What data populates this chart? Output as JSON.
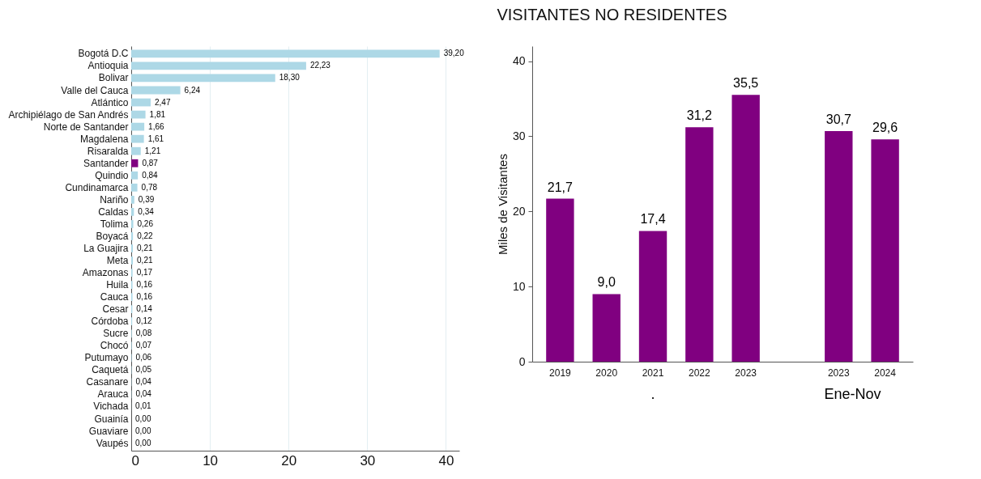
{
  "chart_data": [
    {
      "type": "bar",
      "orientation": "horizontal",
      "categories": [
        "Bogotá D.C",
        "Antioquia",
        "Bolivar",
        "Valle del Cauca",
        "Atlántico",
        "Archipiélago de San Andrés",
        "Norte de Santander",
        "Magdalena",
        "Risaralda",
        "Santander",
        "Quindio",
        "Cundinamarca",
        "Nariño",
        "Caldas",
        "Tolima",
        "Boyacá",
        "La Guajira",
        "Meta",
        "Amazonas",
        "Huila",
        "Cauca",
        "Cesar",
        "Córdoba",
        "Sucre",
        "Chocó",
        "Putumayo",
        "Caquetá",
        "Casanare",
        "Arauca",
        "Vichada",
        "Guainía",
        "Guaviare",
        "Vaupés"
      ],
      "values": [
        39.2,
        22.23,
        18.3,
        6.24,
        2.47,
        1.81,
        1.66,
        1.61,
        1.21,
        0.87,
        0.84,
        0.78,
        0.39,
        0.34,
        0.26,
        0.22,
        0.21,
        0.21,
        0.17,
        0.16,
        0.16,
        0.14,
        0.12,
        0.08,
        0.07,
        0.06,
        0.05,
        0.04,
        0.04,
        0.01,
        0,
        0,
        0
      ],
      "value_labels": [
        "39,20",
        "22,23",
        "18,30",
        "6,24",
        "2,47",
        "1,81",
        "1,66",
        "1,61",
        "1,21",
        "0,87",
        "0,84",
        "0,78",
        "0,39",
        "0,34",
        "0,26",
        "0,22",
        "0,21",
        "0,21",
        "0,17",
        "0,16",
        "0,16",
        "0,14",
        "0,12",
        "0,08",
        "0,07",
        "0,06",
        "0,05",
        "0,04",
        "0,04",
        "0,01",
        "0,00",
        "0,00",
        "0,00"
      ],
      "colors": [
        "#add8e6",
        "#add8e6",
        "#add8e6",
        "#add8e6",
        "#add8e6",
        "#add8e6",
        "#add8e6",
        "#add8e6",
        "#add8e6",
        "#800080",
        "#add8e6",
        "#add8e6",
        "#add8e6",
        "#add8e6",
        "#add8e6",
        "#add8e6",
        "#add8e6",
        "#add8e6",
        "#add8e6",
        "#add8e6",
        "#add8e6",
        "#add8e6",
        "#add8e6",
        "#add8e6",
        "#add8e6",
        "#add8e6",
        "#add8e6",
        "#add8e6",
        "#add8e6",
        "#add8e6",
        "#add8e6",
        "#add8e6",
        "#add8e6"
      ],
      "xlim": [
        0,
        41.7
      ],
      "xticks": [
        0,
        10,
        20,
        30,
        40
      ],
      "grid": "x"
    },
    {
      "type": "bar",
      "title": "VISITANTES NO RESIDENTES",
      "ylabel": "Miles de Visitantes",
      "categories": [
        "2019",
        "2020",
        "2021",
        "2022",
        "2023",
        null,
        "2023",
        "2024"
      ],
      "values": [
        21.7,
        9.0,
        17.4,
        31.2,
        35.5,
        null,
        30.7,
        29.6
      ],
      "value_labels": [
        "21,7",
        "9,0",
        "17,4",
        "31,2",
        "35,5",
        null,
        "30,7",
        "29,6"
      ],
      "color": "#800080",
      "ylim": [
        0,
        42
      ],
      "yticks": [
        0,
        10,
        20,
        30,
        40
      ],
      "annotations": [
        ".",
        "Ene-Nov"
      ]
    }
  ]
}
